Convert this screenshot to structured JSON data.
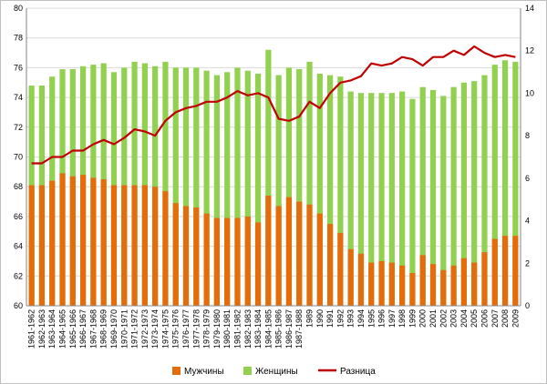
{
  "chart_data": {
    "type": "bar",
    "categories": [
      "1961-1962",
      "1962-1963",
      "1963-1964",
      "1964-1965",
      "1965-1966",
      "1966-1967",
      "1967-1968",
      "1968-1969",
      "1969-1970",
      "1970-1971",
      "1971-1972",
      "1972-1973",
      "1973-1974",
      "1974-1975",
      "1975-1976",
      "1976-1977",
      "1977-1978",
      "1978-1979",
      "1979-1980",
      "1980-1981",
      "1981-1982",
      "1982-1983",
      "1983-1984",
      "1984-1985",
      "1985-1986",
      "1986-1987",
      "1987-1988",
      "1989",
      "1990",
      "1991",
      "1992",
      "1993",
      "1994",
      "1995",
      "1996",
      "1997",
      "1998",
      "1999",
      "2000",
      "2001",
      "2002",
      "2003",
      "2004",
      "2005",
      "2006",
      "2007",
      "2008",
      "2009"
    ],
    "series": [
      {
        "name": "Мужчины",
        "type": "bar",
        "axis": "left",
        "color": "#e46c0a",
        "values": [
          68.1,
          68.1,
          68.4,
          68.9,
          68.7,
          68.8,
          68.6,
          68.5,
          68.1,
          68.1,
          68.1,
          68.1,
          68.0,
          67.7,
          66.9,
          66.7,
          66.6,
          66.2,
          65.9,
          65.9,
          65.9,
          66.0,
          65.6,
          67.4,
          66.7,
          67.3,
          67.0,
          66.8,
          66.2,
          65.5,
          64.9,
          63.8,
          63.5,
          62.9,
          63.0,
          62.9,
          62.7,
          62.2,
          63.4,
          62.8,
          62.4,
          62.7,
          63.2,
          62.9,
          63.6,
          64.5,
          64.7,
          64.7
        ]
      },
      {
        "name": "Женщины",
        "type": "bar",
        "axis": "left",
        "color": "#92d050",
        "values": [
          74.8,
          74.8,
          75.4,
          75.9,
          75.9,
          76.1,
          76.2,
          76.3,
          75.7,
          76.0,
          76.4,
          76.3,
          76.1,
          76.4,
          76.0,
          76.0,
          76.0,
          75.8,
          75.5,
          75.7,
          76.0,
          75.8,
          75.6,
          77.2,
          75.5,
          76.0,
          75.9,
          76.4,
          75.6,
          75.5,
          75.4,
          74.4,
          74.3,
          74.3,
          74.3,
          74.3,
          74.4,
          73.9,
          74.7,
          74.5,
          74.1,
          74.7,
          75.0,
          75.1,
          75.5,
          76.2,
          76.5,
          76.4
        ]
      },
      {
        "name": "Разница",
        "type": "line",
        "axis": "right",
        "color": "#c00000",
        "values": [
          6.7,
          6.7,
          7.0,
          7.0,
          7.3,
          7.3,
          7.6,
          7.8,
          7.6,
          7.9,
          8.3,
          8.2,
          8.0,
          8.7,
          9.1,
          9.3,
          9.4,
          9.6,
          9.6,
          9.8,
          10.1,
          9.9,
          10.0,
          9.8,
          8.8,
          8.7,
          8.9,
          9.6,
          9.3,
          10.0,
          10.5,
          10.6,
          10.8,
          11.4,
          11.3,
          11.4,
          11.7,
          11.6,
          11.3,
          11.7,
          11.7,
          12.0,
          11.8,
          12.2,
          11.9,
          11.7,
          11.8,
          11.7
        ]
      }
    ],
    "y_left": {
      "min": 60,
      "max": 80,
      "step": 2,
      "ticks": [
        "60",
        "62",
        "64",
        "66",
        "68",
        "70",
        "72",
        "74",
        "76",
        "78",
        "80"
      ]
    },
    "y_right": {
      "min": 0,
      "max": 14,
      "step": 2,
      "ticks": [
        "0",
        "2",
        "4",
        "6",
        "8",
        "10",
        "12",
        "14"
      ]
    },
    "grid": "horizontal",
    "legend": {
      "position": "bottom",
      "entries": [
        "Мужчины",
        "Женщины",
        "Разница"
      ]
    },
    "title": "",
    "xlabel": "",
    "ylabel": ""
  }
}
